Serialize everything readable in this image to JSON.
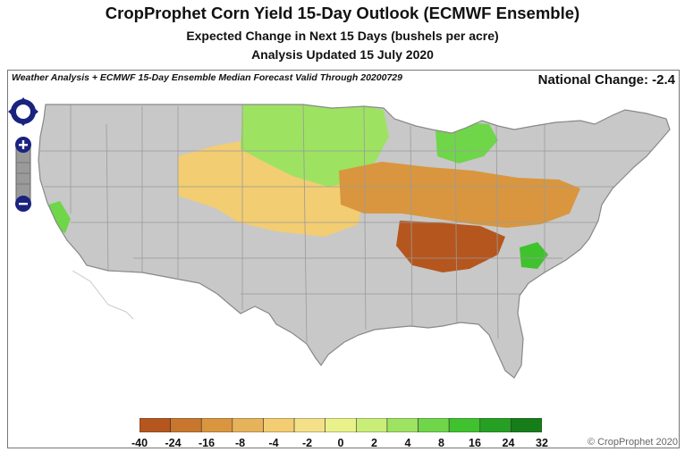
{
  "header": {
    "title": "CropProphet Corn Yield 15-Day Outlook (ECMWF Ensemble)",
    "subtitle": "Expected Change in Next 15 Days (bushels per acre)",
    "updated": "Analysis Updated 15 July 2020"
  },
  "map": {
    "caption": "Weather Analysis + ECMWF 15-Day Ensemble Median Forecast Valid Through 20200729",
    "national_change": "National Change: -2.4",
    "no_data_color": "#c8c8c8",
    "regions": [
      {
        "name": "west-gray",
        "value": null
      },
      {
        "name": "plains-yellow",
        "value": -3
      },
      {
        "name": "northern-plains-green",
        "value": 4
      },
      {
        "name": "corn-belt-orange",
        "value": -10
      },
      {
        "name": "tennessee-valley-dark",
        "value": -24
      },
      {
        "name": "wisconsin-green",
        "value": 6
      },
      {
        "name": "carolina-green",
        "value": 10
      },
      {
        "name": "california-green",
        "value": 10
      }
    ]
  },
  "controls": {
    "nav_icon": "pan-arrows-icon",
    "zoom_in_icon": "plus-icon",
    "zoom_out_icon": "minus-icon"
  },
  "legend": {
    "ticks": [
      "-40",
      "-24",
      "-16",
      "-8",
      "-4",
      "-2",
      "0",
      "2",
      "4",
      "8",
      "16",
      "24",
      "32"
    ],
    "colors": [
      "#b5561e",
      "#c8762e",
      "#d9963f",
      "#e6b35a",
      "#f2cd72",
      "#f5e08a",
      "#e9f28a",
      "#c9ee78",
      "#9ee262",
      "#6fd64a",
      "#3fc22e",
      "#25a022",
      "#177d18"
    ]
  },
  "copyright": "© CropProphet 2020"
}
